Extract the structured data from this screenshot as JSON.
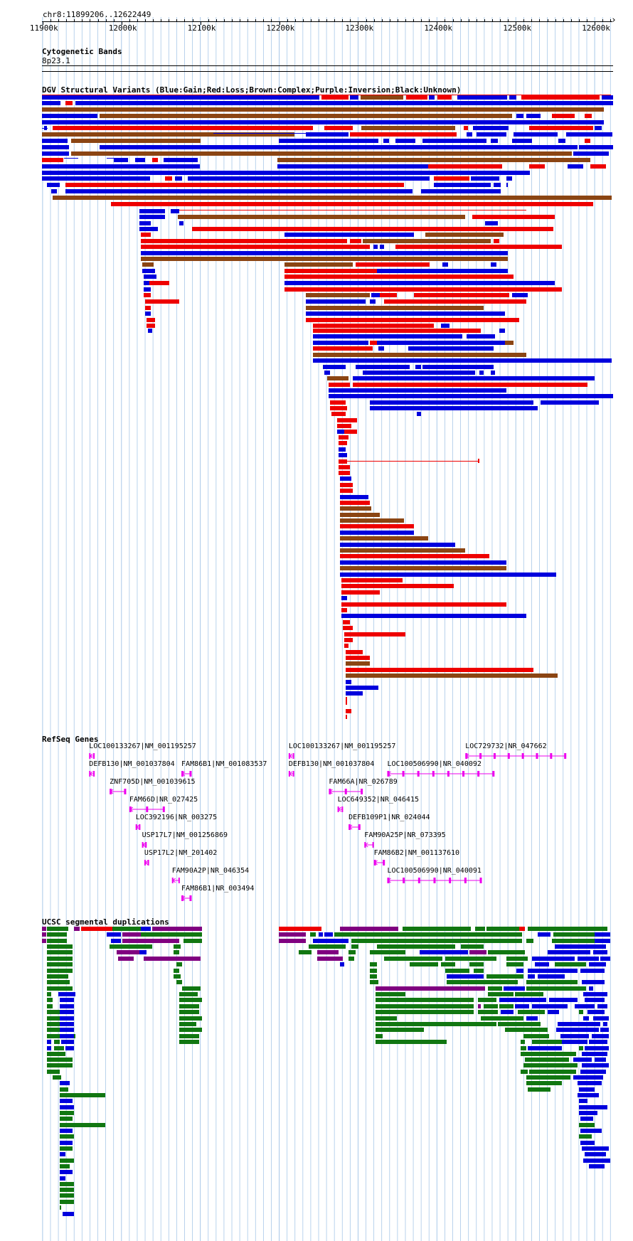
{
  "position": "chr8:11899206..12622449",
  "ruler": {
    "start": 11899206,
    "end": 12622449,
    "ticks": [
      "11900k",
      "12000k",
      "12100k",
      "12200k",
      "12300k",
      "12400k",
      "12500k",
      "12600k"
    ]
  },
  "colors": {
    "gain": "#0000dd",
    "loss": "#ee0000",
    "complex": "#8b4513",
    "inversion": "#800080",
    "unknown": "#000000",
    "gene": "#ee00ee",
    "segdup_green": "#117711",
    "segdup_blue": "#0000dd",
    "segdup_purple": "#800080",
    "segdup_red": "#ee0000",
    "grid": "#a8c8e8"
  },
  "tracks": {
    "cytoband": {
      "title": "Cytogenetic Bands",
      "band": "8p23.1"
    },
    "dgv": {
      "title": "DGV Structural Variants (Blue:Gain;Red:Loss;Brown:Complex;Purple:Inversion;Black:Unknown)"
    },
    "refseq": {
      "title": "RefSeq Genes"
    },
    "segdup": {
      "title": "UCSC segmental duplications"
    }
  },
  "genes": [
    {
      "label": "LOC100133267|NM_001195257",
      "s": 11959000,
      "e": 11966000,
      "row": 0
    },
    {
      "label": "LOC100133267|NM_001195257",
      "s": 12212000,
      "e": 12219000,
      "row": 0
    },
    {
      "label": "LOC729732|NR_047662",
      "s": 12436000,
      "e": 12564000,
      "row": 0
    },
    {
      "label": "DEFB130|NM_001037804",
      "s": 11959000,
      "e": 11966000,
      "row": 1
    },
    {
      "label": "FAM86B1|NM_001083537",
      "s": 12076000,
      "e": 12089000,
      "row": 1
    },
    {
      "label": "DEFB130|NM_001037804",
      "s": 12212000,
      "e": 12219000,
      "row": 1
    },
    {
      "label": "LOC100506990|NR_040092",
      "s": 12337000,
      "e": 12473000,
      "row": 1
    },
    {
      "label": "ZNF705D|NM_001039615",
      "s": 11985000,
      "e": 12006000,
      "row": 2
    },
    {
      "label": "FAM66A|NR_026789",
      "s": 12263000,
      "e": 12306000,
      "row": 2
    },
    {
      "label": "FAM66D|NR_027425",
      "s": 12010000,
      "e": 12055000,
      "row": 3
    },
    {
      "label": "LOC649352|NR_046415",
      "s": 12274000,
      "e": 12281000,
      "row": 3
    },
    {
      "label": "LOC392196|NR_003275",
      "s": 12018000,
      "e": 12024000,
      "row": 4
    },
    {
      "label": "DEFB109P1|NR_024044",
      "s": 12288000,
      "e": 12303000,
      "row": 4
    },
    {
      "label": "USP17L7|NM_001256869",
      "s": 12026000,
      "e": 12032000,
      "row": 5
    },
    {
      "label": "FAM90A25P|NR_073395",
      "s": 12308000,
      "e": 12320000,
      "row": 5
    },
    {
      "label": "USP17L2|NM_201402",
      "s": 12029000,
      "e": 12035000,
      "row": 6
    },
    {
      "label": "FAM86B2|NM_001137610",
      "s": 12320000,
      "e": 12334000,
      "row": 6
    },
    {
      "label": "FAM90A2P|NR_046354",
      "s": 12064000,
      "e": 12074000,
      "row": 7
    },
    {
      "label": "LOC100506990|NR_040091",
      "s": 12337000,
      "e": 12457000,
      "row": 7
    },
    {
      "label": "FAM86B1|NR_003494",
      "s": 12076000,
      "e": 12089000,
      "row": 8
    }
  ]
}
